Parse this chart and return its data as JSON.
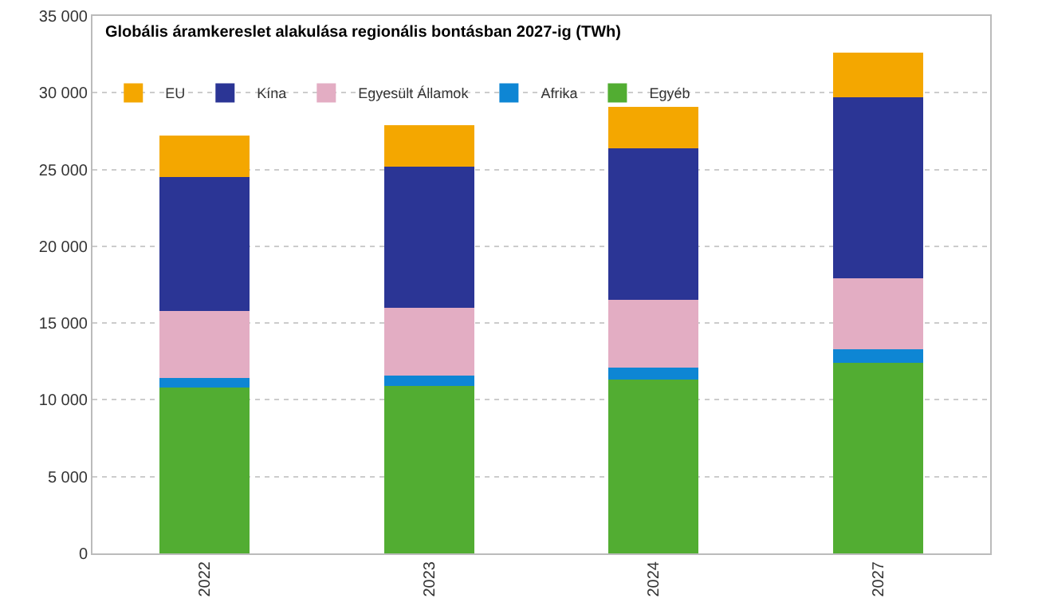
{
  "chart_data": {
    "type": "bar",
    "title": "Globális áramkereslet alakulása regionális bontásban 2027-ig (TWh)",
    "categories": [
      "2022",
      "2023",
      "2024",
      "2027"
    ],
    "stacked": true,
    "series": [
      {
        "name": "Egyéb",
        "color": "#52ad32",
        "values": [
          10800,
          10900,
          11300,
          12400
        ]
      },
      {
        "name": "Afrika",
        "color": "#0e86d4",
        "values": [
          600,
          700,
          800,
          900
        ]
      },
      {
        "name": "Egyesült Államok",
        "color": "#e3adc3",
        "values": [
          4400,
          4400,
          4400,
          4600
        ]
      },
      {
        "name": "Kína",
        "color": "#2b3595",
        "values": [
          8700,
          9200,
          9900,
          11800
        ]
      },
      {
        "name": "EU",
        "color": "#f4a700",
        "values": [
          2700,
          2700,
          2700,
          2900
        ]
      }
    ],
    "ylim": [
      0,
      35000
    ],
    "yticks": [
      0,
      {
        "value": 5000,
        "label": "5 000"
      },
      {
        "value": 10000,
        "label": "10 000"
      },
      {
        "value": 15000,
        "label": "15 000"
      },
      {
        "value": 20000,
        "label": "20 000"
      },
      {
        "value": 25000,
        "label": "25 000"
      },
      {
        "value": 30000,
        "label": "30 000"
      },
      {
        "value": 35000,
        "label": "35 000"
      }
    ],
    "grid": "y",
    "legend": "top left"
  }
}
